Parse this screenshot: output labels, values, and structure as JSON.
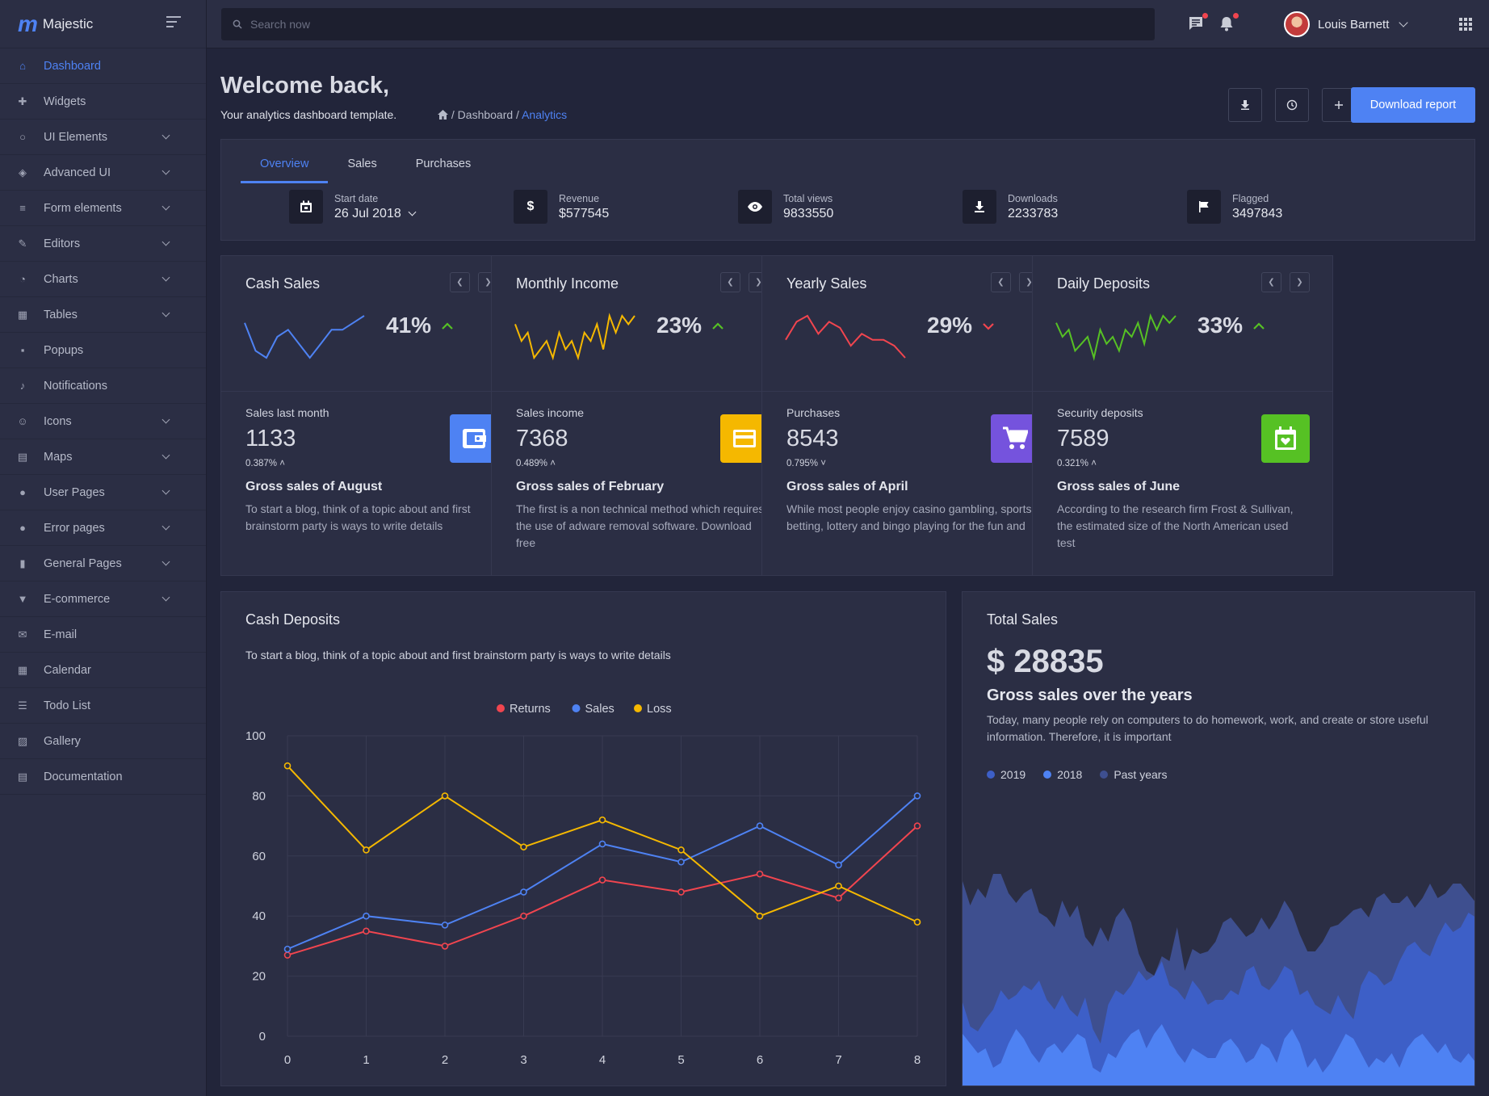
{
  "brand": {
    "name": "Majestic",
    "logo": "m"
  },
  "search": {
    "placeholder": "Search now"
  },
  "user": {
    "name": "Louis Barnett"
  },
  "sidebar": {
    "items": [
      {
        "label": "Dashboard",
        "icon": "home-icon",
        "active": true,
        "expandable": false
      },
      {
        "label": "Widgets",
        "icon": "puzzle-icon",
        "expandable": false
      },
      {
        "label": "UI Elements",
        "icon": "circle-icon",
        "expandable": true
      },
      {
        "label": "Advanced UI",
        "icon": "layers-icon",
        "expandable": true
      },
      {
        "label": "Form elements",
        "icon": "list-icon",
        "expandable": true
      },
      {
        "label": "Editors",
        "icon": "edit-icon",
        "expandable": true
      },
      {
        "label": "Charts",
        "icon": "pie-chart-icon",
        "expandable": true
      },
      {
        "label": "Tables",
        "icon": "table-icon",
        "expandable": true
      },
      {
        "label": "Popups",
        "icon": "comment-icon",
        "expandable": false
      },
      {
        "label": "Notifications",
        "icon": "bell-icon",
        "expandable": false
      },
      {
        "label": "Icons",
        "icon": "smiley-icon",
        "expandable": true
      },
      {
        "label": "Maps",
        "icon": "map-icon",
        "expandable": true
      },
      {
        "label": "User Pages",
        "icon": "user-icon",
        "expandable": true
      },
      {
        "label": "Error pages",
        "icon": "alert-icon",
        "expandable": true
      },
      {
        "label": "General Pages",
        "icon": "file-icon",
        "expandable": true
      },
      {
        "label": "E-commerce",
        "icon": "basket-icon",
        "expandable": true
      },
      {
        "label": "E-mail",
        "icon": "mail-icon",
        "expandable": false
      },
      {
        "label": "Calendar",
        "icon": "calendar-icon",
        "expandable": false
      },
      {
        "label": "Todo List",
        "icon": "checklist-icon",
        "expandable": false
      },
      {
        "label": "Gallery",
        "icon": "image-icon",
        "expandable": false
      },
      {
        "label": "Documentation",
        "icon": "document-icon",
        "expandable": false
      }
    ]
  },
  "header": {
    "title": "Welcome back,",
    "subtitle": "Your analytics dashboard template.",
    "breadcrumb": {
      "sep1": " / ",
      "item1": "Dashboard",
      "sep2": " / ",
      "current": "Analytics"
    },
    "download_label": "Download report"
  },
  "overview": {
    "tabs": [
      "Overview",
      "Sales",
      "Purchases"
    ],
    "stats": [
      {
        "label": "Start date",
        "value": "26 Jul 2018",
        "icon": "calendar-icon"
      },
      {
        "label": "Revenue",
        "value": "$577545",
        "icon": "dollar-icon"
      },
      {
        "label": "Total views",
        "value": "9833550",
        "icon": "eye-icon"
      },
      {
        "label": "Downloads",
        "value": "2233783",
        "icon": "download-icon"
      },
      {
        "label": "Flagged",
        "value": "3497843",
        "icon": "flag-icon"
      }
    ]
  },
  "cards": [
    {
      "title": "Cash Sales",
      "percent": "41%",
      "trend": "up",
      "spark_color": "#4e82f3",
      "spark": [
        6,
        2,
        1,
        4,
        5,
        3,
        1,
        3,
        5,
        5,
        6,
        7
      ],
      "label": "Sales last month",
      "value": "1133",
      "change": "0.387%",
      "change_dir": "up",
      "heading": "Gross sales of August",
      "desc": "To start a blog, think of a topic about and first brainstorm party is ways to write details",
      "icon": "wallet-icon",
      "icon_bg": "#4e82f3"
    },
    {
      "title": "Monthly Income",
      "percent": "23%",
      "trend": "up",
      "spark_color": "#f5b800",
      "spark": [
        6,
        4,
        5,
        2,
        3,
        4,
        2,
        5,
        3,
        4,
        2,
        5,
        4,
        6,
        3,
        7,
        5,
        7,
        6,
        7
      ],
      "label": "Sales income",
      "value": "7368",
      "change": "0.489%",
      "change_dir": "up",
      "heading": "Gross sales of February",
      "desc": "The first is a non technical method which requires the use of adware removal software. Download free",
      "icon": "credit-card-icon",
      "icon_bg": "#f5b800"
    },
    {
      "title": "Yearly Sales",
      "percent": "29%",
      "trend": "down",
      "spark_color": "#f1454f",
      "spark": [
        3,
        6,
        7,
        4,
        6,
        5,
        2,
        4,
        3,
        3,
        2,
        0
      ],
      "label": "Purchases",
      "value": "8543",
      "change": "0.795%",
      "change_dir": "down",
      "heading": "Gross sales of April",
      "desc": "While most people enjoy casino gambling, sports betting, lottery and bingo playing for the fun and",
      "icon": "cart-icon",
      "icon_bg": "#7553dd"
    },
    {
      "title": "Daily Deposits",
      "percent": "33%",
      "trend": "up",
      "spark_color": "#56c124",
      "spark": [
        6,
        4,
        5,
        2,
        3,
        4,
        1,
        5,
        3,
        4,
        2,
        5,
        4,
        6,
        3,
        7,
        5,
        7,
        6,
        7
      ],
      "label": "Security deposits",
      "value": "7589",
      "change": "0.321%",
      "change_dir": "up",
      "heading": "Gross sales of June",
      "desc": "According to the research firm Frost & Sullivan, the estimated size of the North American used test",
      "icon": "calendar-heart-icon",
      "icon_bg": "#56c124"
    }
  ],
  "deposits": {
    "title": "Cash Deposits",
    "desc": "To start a blog, think of a topic about and first brainstorm party is ways to write details"
  },
  "total_sales": {
    "title": "Total Sales",
    "amount": "$ 28835",
    "heading": "Gross sales over the years",
    "desc": "Today, many people rely on computers to do homework, work, and create or store useful information. Therefore, it is important",
    "legend": [
      {
        "label": "2019",
        "color": "#3d5fc7"
      },
      {
        "label": "2018",
        "color": "#4e82f3"
      },
      {
        "label": "Past years",
        "color": "#3e4f8f"
      }
    ]
  },
  "chart_data": [
    {
      "type": "line",
      "title": "Cash Deposits",
      "x": [
        0,
        1,
        2,
        3,
        4,
        5,
        6,
        7,
        8
      ],
      "ylim": [
        0,
        100
      ],
      "yticks": [
        0,
        20,
        40,
        60,
        80,
        100
      ],
      "series": [
        {
          "name": "Returns",
          "color": "#f1454f",
          "values": [
            27,
            35,
            30,
            40,
            52,
            48,
            54,
            46,
            70
          ]
        },
        {
          "name": "Sales",
          "color": "#4e82f3",
          "values": [
            29,
            40,
            37,
            48,
            64,
            58,
            70,
            57,
            80
          ]
        },
        {
          "name": "Loss",
          "color": "#f5b800",
          "values": [
            90,
            62,
            80,
            63,
            72,
            62,
            40,
            50,
            38
          ]
        }
      ],
      "legend": "top-center"
    },
    {
      "type": "area",
      "title": "Total Sales",
      "series": [
        {
          "name": "Past years",
          "color": "#3e4f8f",
          "values": [
            85,
            75,
            82,
            78,
            88,
            88,
            80,
            76,
            80,
            82,
            72,
            70,
            66,
            77,
            70,
            75,
            62,
            58,
            66,
            60,
            70,
            74,
            68,
            55,
            48,
            46,
            54,
            52,
            66,
            48,
            57,
            55,
            56,
            60,
            68,
            70,
            66,
            62,
            64,
            70,
            65,
            70,
            77,
            72,
            63,
            56,
            56,
            60,
            66,
            67,
            70,
            73,
            74,
            70,
            78,
            80,
            76,
            76,
            79,
            74,
            78,
            84,
            78,
            80,
            84,
            84,
            80,
            76
          ]
        },
        {
          "name": "2019",
          "color": "#3d5fc7",
          "values": [
            35,
            25,
            23,
            28,
            32,
            40,
            36,
            38,
            42,
            40,
            44,
            36,
            32,
            38,
            32,
            29,
            37,
            24,
            18,
            34,
            40,
            38,
            42,
            48,
            44,
            46,
            52,
            42,
            40,
            36,
            44,
            40,
            34,
            36,
            36,
            40,
            38,
            48,
            50,
            42,
            40,
            44,
            50,
            48,
            38,
            40,
            34,
            32,
            30,
            38,
            32,
            28,
            42,
            48,
            46,
            42,
            44,
            52,
            58,
            60,
            56,
            54,
            62,
            68,
            64,
            66,
            72,
            70
          ]
        },
        {
          "name": "2018",
          "color": "#4e82f3",
          "values": [
            22,
            18,
            14,
            16,
            8,
            10,
            18,
            24,
            20,
            14,
            10,
            16,
            18,
            14,
            18,
            22,
            20,
            8,
            6,
            14,
            12,
            18,
            22,
            24,
            16,
            22,
            26,
            20,
            14,
            10,
            16,
            14,
            12,
            12,
            18,
            20,
            16,
            10,
            12,
            18,
            16,
            10,
            20,
            24,
            18,
            8,
            12,
            6,
            10,
            16,
            22,
            20,
            14,
            8,
            12,
            10,
            14,
            8,
            16,
            20,
            22,
            18,
            14,
            18,
            12,
            10,
            14,
            10
          ]
        }
      ],
      "legend": "top-left"
    }
  ]
}
